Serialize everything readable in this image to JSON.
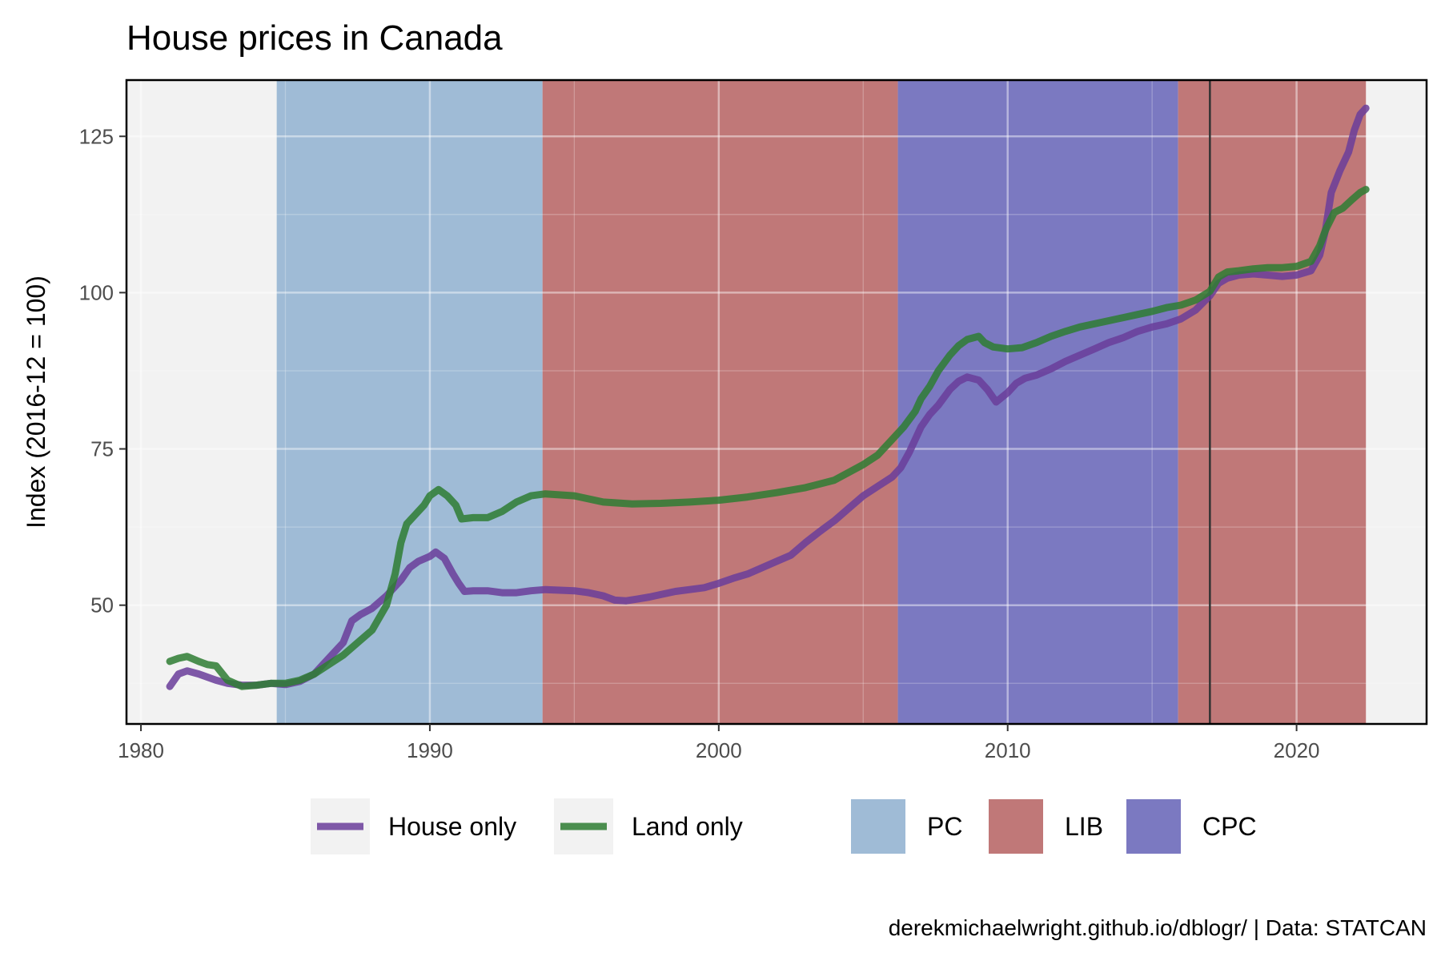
{
  "chart_data": {
    "type": "line",
    "title": "House prices in Canada",
    "xlabel": "",
    "ylabel": "Index (2016-12 = 100)",
    "caption": "derekmichaelwright.github.io/dblogr/ | Data: STATCAN",
    "xlim": [
      1979.5,
      2024.5
    ],
    "ylim": [
      31,
      134
    ],
    "x_ticks": [
      1980,
      1990,
      2000,
      2010,
      2020
    ],
    "y_ticks": [
      50,
      75,
      100,
      125
    ],
    "grid": true,
    "legend_position": "bottom",
    "reference_line_x": 2017.0,
    "colors": {
      "house": "#6a3d9a",
      "land": "#2e7d32",
      "PC": "#9fbbd6",
      "LIB": "#c07878",
      "CPC": "#7b79c1",
      "panel": "#f2f2f2"
    },
    "periods": [
      {
        "party": "PC",
        "start": 1984.7,
        "end": 1993.9
      },
      {
        "party": "LIB",
        "start": 1993.9,
        "end": 2006.2
      },
      {
        "party": "CPC",
        "start": 2006.2,
        "end": 2015.9
      },
      {
        "party": "LIB",
        "start": 2015.9,
        "end": 2022.4
      }
    ],
    "legend_parties": [
      "PC",
      "LIB",
      "CPC"
    ],
    "series": [
      {
        "name": "House only",
        "key": "house",
        "points": [
          [
            1981.0,
            37
          ],
          [
            1981.3,
            39
          ],
          [
            1981.6,
            39.5
          ],
          [
            1982.0,
            39
          ],
          [
            1982.3,
            38.5
          ],
          [
            1982.6,
            38
          ],
          [
            1983.0,
            37.5
          ],
          [
            1983.5,
            37.2
          ],
          [
            1984.0,
            37.2
          ],
          [
            1984.5,
            37.5
          ],
          [
            1985.0,
            37.3
          ],
          [
            1985.5,
            37.8
          ],
          [
            1986.0,
            39
          ],
          [
            1986.5,
            41.5
          ],
          [
            1987.0,
            44
          ],
          [
            1987.3,
            47.5
          ],
          [
            1987.6,
            48.5
          ],
          [
            1988.0,
            49.5
          ],
          [
            1988.5,
            51.5
          ],
          [
            1989.0,
            54
          ],
          [
            1989.3,
            56
          ],
          [
            1989.6,
            57
          ],
          [
            1990.0,
            57.8
          ],
          [
            1990.2,
            58.5
          ],
          [
            1990.5,
            57.5
          ],
          [
            1990.8,
            55
          ],
          [
            1991.0,
            53.5
          ],
          [
            1991.2,
            52.2
          ],
          [
            1991.5,
            52.3
          ],
          [
            1992.0,
            52.3
          ],
          [
            1992.5,
            52
          ],
          [
            1993.0,
            52
          ],
          [
            1993.5,
            52.3
          ],
          [
            1994.0,
            52.5
          ],
          [
            1994.5,
            52.4
          ],
          [
            1995.0,
            52.3
          ],
          [
            1995.5,
            52
          ],
          [
            1996.0,
            51.5
          ],
          [
            1996.4,
            50.8
          ],
          [
            1996.8,
            50.7
          ],
          [
            1997.2,
            51
          ],
          [
            1997.6,
            51.3
          ],
          [
            1998.0,
            51.7
          ],
          [
            1998.5,
            52.2
          ],
          [
            1999.0,
            52.5
          ],
          [
            1999.5,
            52.8
          ],
          [
            2000.0,
            53.5
          ],
          [
            2000.5,
            54.3
          ],
          [
            2001.0,
            55
          ],
          [
            2001.5,
            56
          ],
          [
            2002.0,
            57
          ],
          [
            2002.5,
            58
          ],
          [
            2003.0,
            60
          ],
          [
            2003.5,
            61.8
          ],
          [
            2004.0,
            63.5
          ],
          [
            2004.5,
            65.5
          ],
          [
            2005.0,
            67.5
          ],
          [
            2005.5,
            69
          ],
          [
            2006.0,
            70.5
          ],
          [
            2006.3,
            72
          ],
          [
            2006.6,
            74.5
          ],
          [
            2007.0,
            78.5
          ],
          [
            2007.3,
            80.5
          ],
          [
            2007.6,
            82
          ],
          [
            2008.0,
            84.5
          ],
          [
            2008.3,
            85.8
          ],
          [
            2008.6,
            86.5
          ],
          [
            2009.0,
            86
          ],
          [
            2009.3,
            84.5
          ],
          [
            2009.6,
            82.5
          ],
          [
            2010.0,
            84
          ],
          [
            2010.3,
            85.5
          ],
          [
            2010.6,
            86.3
          ],
          [
            2011.0,
            86.8
          ],
          [
            2011.5,
            87.8
          ],
          [
            2012.0,
            89
          ],
          [
            2012.5,
            90
          ],
          [
            2013.0,
            91
          ],
          [
            2013.5,
            92
          ],
          [
            2014.0,
            92.8
          ],
          [
            2014.5,
            93.8
          ],
          [
            2015.0,
            94.5
          ],
          [
            2015.5,
            95
          ],
          [
            2016.0,
            95.8
          ],
          [
            2016.5,
            97.2
          ],
          [
            2017.0,
            99.5
          ],
          [
            2017.3,
            101.5
          ],
          [
            2017.6,
            102.3
          ],
          [
            2018.0,
            102.8
          ],
          [
            2018.5,
            103
          ],
          [
            2019.0,
            102.8
          ],
          [
            2019.5,
            102.6
          ],
          [
            2020.0,
            102.8
          ],
          [
            2020.5,
            103.5
          ],
          [
            2020.8,
            106
          ],
          [
            2021.0,
            110
          ],
          [
            2021.2,
            116
          ],
          [
            2021.5,
            119.5
          ],
          [
            2021.8,
            122.5
          ],
          [
            2022.0,
            126
          ],
          [
            2022.2,
            128.5
          ],
          [
            2022.4,
            129.5
          ]
        ]
      },
      {
        "name": "Land only",
        "key": "land",
        "points": [
          [
            1981.0,
            41
          ],
          [
            1981.3,
            41.5
          ],
          [
            1981.6,
            41.8
          ],
          [
            1982.0,
            41
          ],
          [
            1982.3,
            40.5
          ],
          [
            1982.6,
            40.3
          ],
          [
            1983.0,
            38
          ],
          [
            1983.5,
            37
          ],
          [
            1984.0,
            37.2
          ],
          [
            1984.5,
            37.5
          ],
          [
            1985.0,
            37.5
          ],
          [
            1985.5,
            38
          ],
          [
            1986.0,
            39
          ],
          [
            1986.5,
            40.5
          ],
          [
            1987.0,
            42
          ],
          [
            1987.5,
            44
          ],
          [
            1988.0,
            46
          ],
          [
            1988.5,
            50
          ],
          [
            1988.8,
            55
          ],
          [
            1989.0,
            60
          ],
          [
            1989.2,
            63
          ],
          [
            1989.5,
            64.5
          ],
          [
            1989.8,
            66
          ],
          [
            1990.0,
            67.5
          ],
          [
            1990.3,
            68.5
          ],
          [
            1990.6,
            67.5
          ],
          [
            1990.9,
            66
          ],
          [
            1991.1,
            63.8
          ],
          [
            1991.5,
            64
          ],
          [
            1992.0,
            64
          ],
          [
            1992.5,
            65
          ],
          [
            1993.0,
            66.5
          ],
          [
            1993.5,
            67.5
          ],
          [
            1994.0,
            67.8
          ],
          [
            1995.0,
            67.5
          ],
          [
            1995.5,
            67
          ],
          [
            1996.0,
            66.5
          ],
          [
            1997.0,
            66.2
          ],
          [
            1998.0,
            66.3
          ],
          [
            1999.0,
            66.5
          ],
          [
            2000.0,
            66.8
          ],
          [
            2001.0,
            67.3
          ],
          [
            2002.0,
            68
          ],
          [
            2003.0,
            68.8
          ],
          [
            2004.0,
            70
          ],
          [
            2004.6,
            71.5
          ],
          [
            2005.0,
            72.5
          ],
          [
            2005.5,
            74
          ],
          [
            2006.0,
            76.5
          ],
          [
            2006.4,
            78.5
          ],
          [
            2006.8,
            81
          ],
          [
            2007.0,
            83
          ],
          [
            2007.3,
            85
          ],
          [
            2007.6,
            87.5
          ],
          [
            2008.0,
            90
          ],
          [
            2008.3,
            91.5
          ],
          [
            2008.6,
            92.5
          ],
          [
            2009.0,
            93
          ],
          [
            2009.2,
            92
          ],
          [
            2009.5,
            91.3
          ],
          [
            2010.0,
            91
          ],
          [
            2010.5,
            91.2
          ],
          [
            2011.0,
            92
          ],
          [
            2011.5,
            93
          ],
          [
            2012.0,
            93.8
          ],
          [
            2012.5,
            94.5
          ],
          [
            2013.0,
            95
          ],
          [
            2013.5,
            95.5
          ],
          [
            2014.0,
            96
          ],
          [
            2014.5,
            96.5
          ],
          [
            2015.0,
            97
          ],
          [
            2015.5,
            97.6
          ],
          [
            2016.0,
            98
          ],
          [
            2016.5,
            98.8
          ],
          [
            2017.0,
            100.2
          ],
          [
            2017.3,
            102.5
          ],
          [
            2017.6,
            103.3
          ],
          [
            2018.0,
            103.5
          ],
          [
            2018.5,
            103.8
          ],
          [
            2019.0,
            104
          ],
          [
            2019.5,
            104
          ],
          [
            2020.0,
            104.2
          ],
          [
            2020.5,
            105
          ],
          [
            2020.8,
            107.5
          ],
          [
            2021.0,
            110
          ],
          [
            2021.3,
            112.8
          ],
          [
            2021.6,
            113.5
          ],
          [
            2021.9,
            114.8
          ],
          [
            2022.2,
            116
          ],
          [
            2022.4,
            116.5
          ]
        ]
      }
    ]
  }
}
